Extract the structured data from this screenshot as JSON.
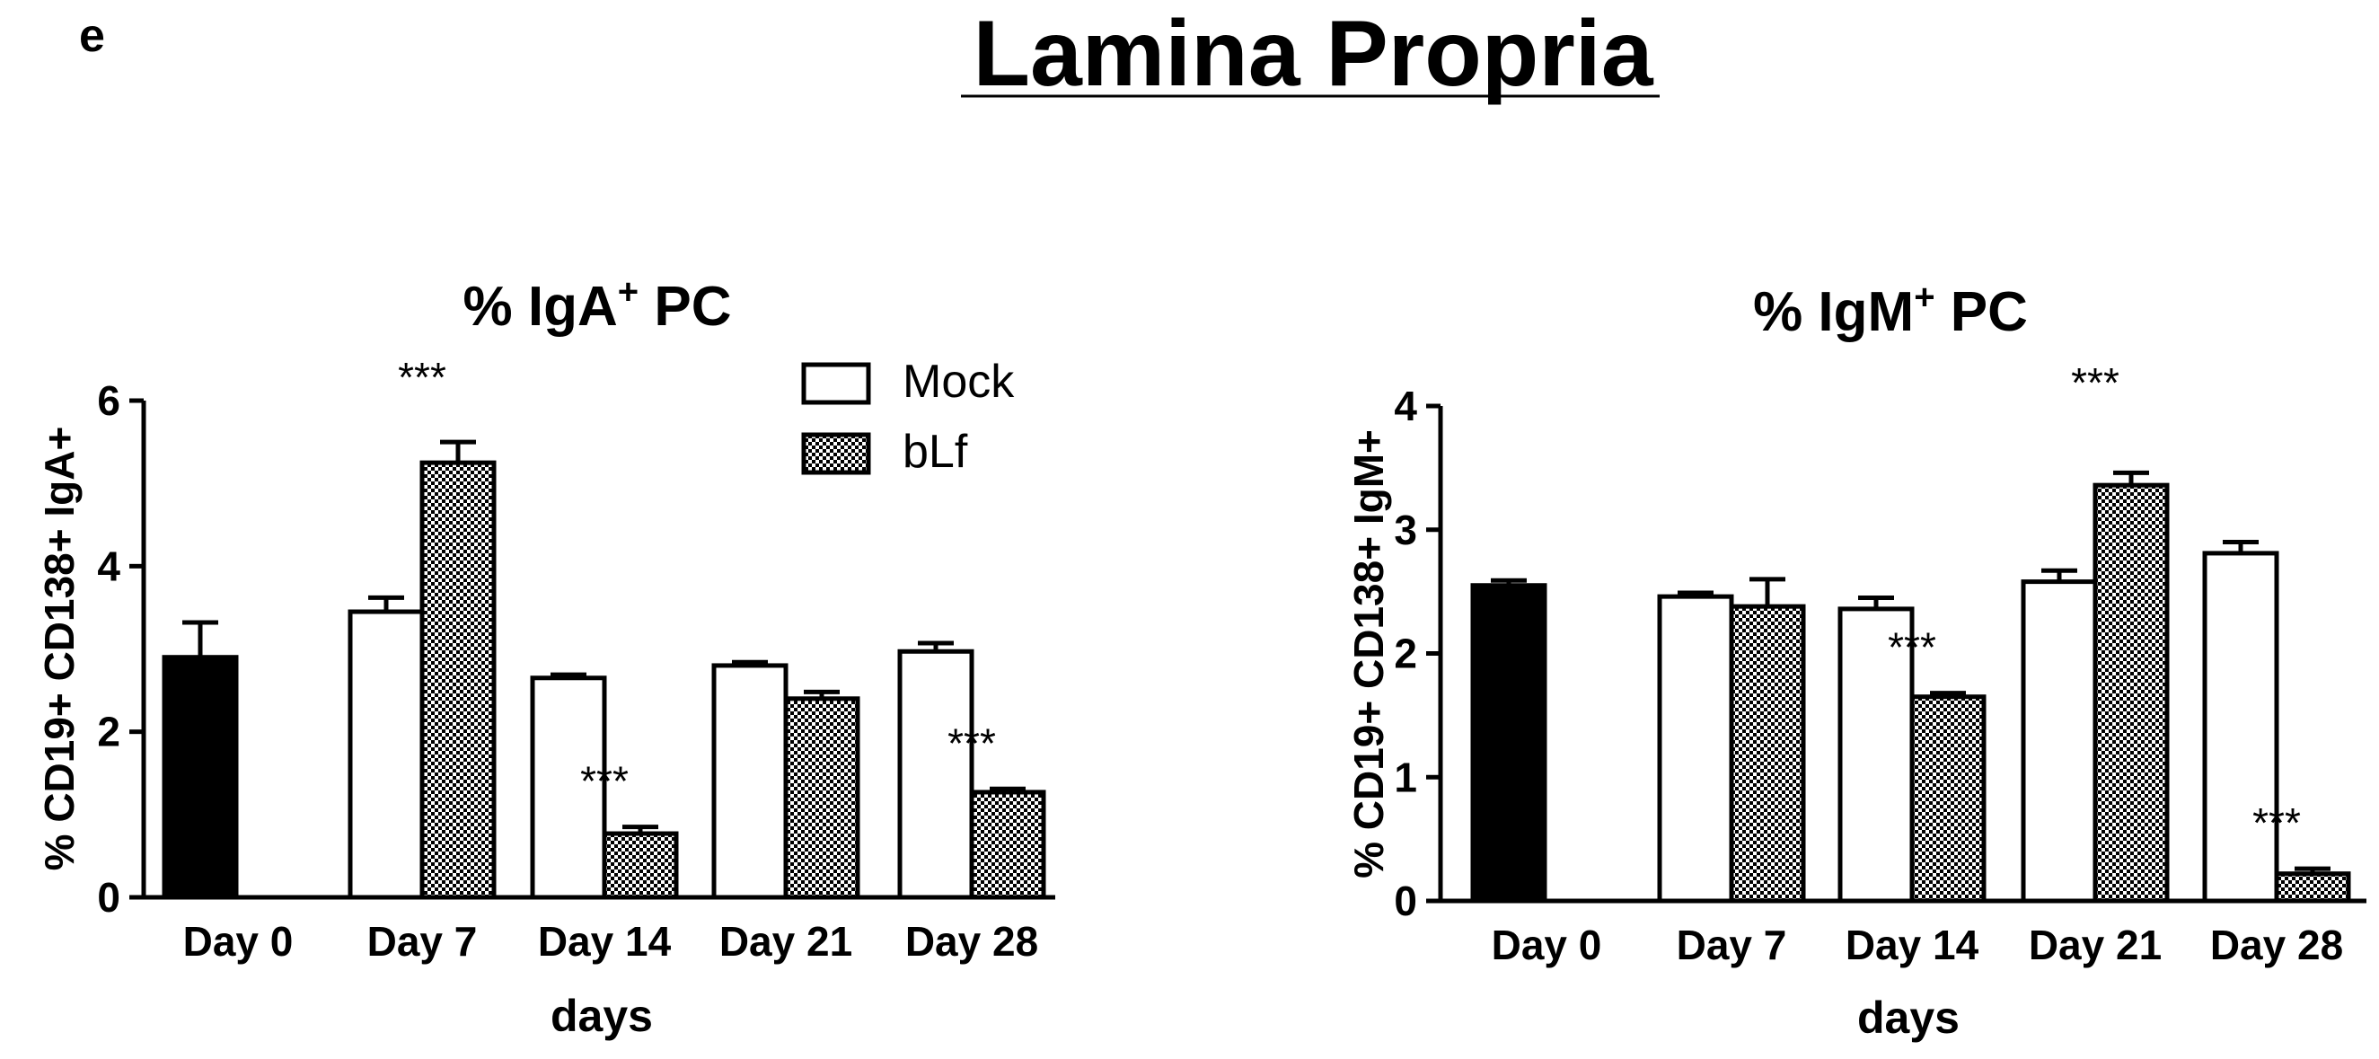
{
  "panel_letter": "e",
  "figure_title": "Lamina Propria",
  "legend": {
    "position": "top-right",
    "items": [
      {
        "label": "Mock",
        "fill": "white"
      },
      {
        "label": "bLf",
        "fill": "checker"
      }
    ]
  },
  "chart_data": [
    {
      "type": "bar",
      "title": {
        "prefix": "% IgA",
        "sup": "+",
        "suffix": " PC"
      },
      "ylabel": "% CD19+ CD138+ IgA+",
      "xlabel": "days",
      "ylim": [
        0,
        6
      ],
      "yticks": [
        0,
        2,
        4,
        6
      ],
      "categories": [
        "Day 0",
        "Day 7",
        "Day 14",
        "Day 21",
        "Day 28"
      ],
      "series": [
        {
          "name": "Day 0",
          "fill": "black",
          "values": [
            2.9,
            null,
            null,
            null,
            null
          ],
          "errors": [
            0.42,
            null,
            null,
            null,
            null
          ]
        },
        {
          "name": "Mock",
          "fill": "white",
          "values": [
            null,
            3.45,
            2.65,
            2.8,
            2.97
          ],
          "errors": [
            null,
            0.17,
            0.04,
            0.04,
            0.1
          ]
        },
        {
          "name": "bLf",
          "fill": "checker",
          "values": [
            null,
            5.25,
            0.77,
            2.4,
            1.27
          ],
          "errors": [
            null,
            0.25,
            0.08,
            0.08,
            0.04
          ]
        }
      ],
      "annotations": [
        {
          "category": "Day 7",
          "series": "bLf",
          "text": "***"
        },
        {
          "category": "Day 14",
          "series": "bLf",
          "text": "***"
        },
        {
          "category": "Day 28",
          "series": "bLf",
          "text": "***"
        }
      ]
    },
    {
      "type": "bar",
      "title": {
        "prefix": "% IgM",
        "sup": "+",
        "suffix": " PC"
      },
      "ylabel": "% CD19+ CD138+ IgM+",
      "xlabel": "days",
      "ylim": [
        0,
        4
      ],
      "yticks": [
        0,
        1,
        2,
        3,
        4
      ],
      "categories": [
        "Day 0",
        "Day 7",
        "Day 14",
        "Day 21",
        "Day 28"
      ],
      "series": [
        {
          "name": "Day 0",
          "fill": "black",
          "values": [
            2.55,
            null,
            null,
            null,
            null
          ],
          "errors": [
            0.04,
            null,
            null,
            null,
            null
          ]
        },
        {
          "name": "Mock",
          "fill": "white",
          "values": [
            null,
            2.46,
            2.36,
            2.58,
            2.81
          ],
          "errors": [
            null,
            0.03,
            0.09,
            0.09,
            0.09
          ]
        },
        {
          "name": "bLf",
          "fill": "checker",
          "values": [
            null,
            2.38,
            1.65,
            3.36,
            0.22
          ],
          "errors": [
            null,
            0.22,
            0.03,
            0.1,
            0.04
          ]
        }
      ],
      "annotations": [
        {
          "category": "Day 14",
          "series": "bLf",
          "text": "***"
        },
        {
          "category": "Day 21",
          "series": "bLf",
          "text": "***"
        },
        {
          "category": "Day 28",
          "series": "bLf",
          "text": "***"
        }
      ]
    }
  ]
}
